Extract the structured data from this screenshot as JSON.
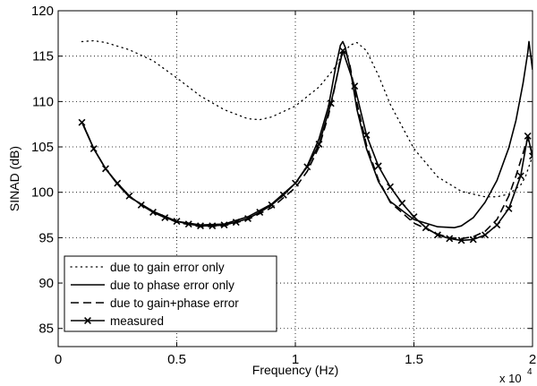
{
  "chart_data": {
    "type": "line",
    "xlabel": "Frequency (Hz)",
    "ylabel": "SINAD (dB)",
    "x_scale_label": {
      "base": "x 10",
      "exponent": "4"
    },
    "xlim": [
      0,
      20000
    ],
    "ylim": [
      83,
      120
    ],
    "xticks": [
      0,
      5000,
      10000,
      15000,
      20000
    ],
    "xtick_labels": [
      "0",
      "0.5",
      "1",
      "1.5",
      "2"
    ],
    "yticks": [
      85,
      90,
      95,
      100,
      105,
      110,
      115,
      120
    ],
    "ytick_labels": [
      "85",
      "90",
      "95",
      "100",
      "105",
      "110",
      "115",
      "120"
    ],
    "grid": true,
    "legend_position": "bottom-left",
    "series": [
      {
        "name": "due to gain error only",
        "style": "dotted",
        "color": "#000000",
        "x": [
          1000,
          1500,
          2000,
          3000,
          4000,
          5000,
          6000,
          7000,
          8000,
          8500,
          9000,
          10000,
          11000,
          11600,
          12000,
          12300,
          12600,
          13000,
          13500,
          14000,
          15000,
          16000,
          17000,
          18000,
          18500,
          19000,
          19500,
          19700,
          20000
        ],
        "y": [
          116.6,
          116.7,
          116.5,
          115.7,
          114.5,
          112.6,
          110.6,
          109.1,
          108.1,
          108.0,
          108.3,
          109.5,
          111.6,
          113.5,
          115.2,
          116.2,
          116.5,
          115.6,
          112.9,
          109.7,
          104.8,
          101.7,
          100.1,
          99.5,
          99.5,
          99.8,
          100.8,
          101.7,
          104.0
        ]
      },
      {
        "name": "due to phase error only",
        "style": "solid",
        "color": "#000000",
        "x": [
          1000,
          1500,
          2000,
          2500,
          3000,
          4000,
          5000,
          6000,
          7000,
          8000,
          9000,
          10000,
          10500,
          11000,
          11400,
          11700,
          11900,
          12000,
          12100,
          12300,
          12600,
          13000,
          13500,
          14000,
          15000,
          16000,
          16700,
          17000,
          17500,
          18000,
          18500,
          19000,
          19300,
          19600,
          19800,
          19850,
          20000
        ],
        "y": [
          107.8,
          104.8,
          102.6,
          100.9,
          99.5,
          97.9,
          96.8,
          96.4,
          96.5,
          97.3,
          98.7,
          101.0,
          102.9,
          105.9,
          109.5,
          113.8,
          116.2,
          116.6,
          116.0,
          113.8,
          109.1,
          104.8,
          101.2,
          99.0,
          97.0,
          96.2,
          96.1,
          96.3,
          97.2,
          98.9,
          101.3,
          104.9,
          107.9,
          112.0,
          115.4,
          116.6,
          113.5
        ]
      },
      {
        "name": "due to gain+phase error",
        "style": "dashed",
        "color": "#000000",
        "x": [
          1000,
          1500,
          2000,
          2500,
          3000,
          4000,
          5000,
          6000,
          7000,
          8000,
          9000,
          10000,
          10500,
          11000,
          11400,
          11700,
          11900,
          12000,
          12100,
          12300,
          12600,
          13000,
          13500,
          14000,
          15000,
          16000,
          16500,
          17000,
          17500,
          18000,
          18500,
          19000,
          19300,
          19600,
          19800,
          20000
        ],
        "y": [
          107.8,
          104.8,
          102.6,
          100.9,
          99.5,
          97.8,
          96.7,
          96.2,
          96.3,
          97.0,
          98.3,
          100.5,
          102.3,
          105.0,
          108.5,
          112.0,
          114.8,
          115.6,
          115.7,
          114.0,
          109.8,
          105.2,
          101.4,
          98.9,
          96.6,
          95.4,
          95.0,
          94.9,
          95.1,
          95.7,
          97.0,
          99.6,
          101.8,
          104.3,
          106.0,
          104.0
        ]
      },
      {
        "name": "measured",
        "style": "solid-x-markers",
        "color": "#000000",
        "x": [
          1000,
          1500,
          2000,
          2500,
          3000,
          3500,
          4000,
          4500,
          5000,
          5500,
          6000,
          6500,
          7000,
          7500,
          8000,
          8500,
          9000,
          9500,
          10000,
          10500,
          11000,
          11500,
          12000,
          12500,
          13000,
          13500,
          14000,
          14500,
          15000,
          15500,
          16000,
          16500,
          17000,
          17500,
          18000,
          18500,
          19000,
          19500,
          19800,
          20000
        ],
        "y": [
          107.7,
          104.8,
          102.6,
          101.0,
          99.6,
          98.6,
          97.8,
          97.2,
          96.8,
          96.5,
          96.3,
          96.3,
          96.4,
          96.7,
          97.1,
          97.8,
          98.6,
          99.7,
          101.0,
          102.8,
          105.3,
          109.8,
          115.6,
          111.7,
          106.3,
          102.9,
          100.6,
          98.8,
          97.3,
          96.1,
          95.3,
          94.9,
          94.7,
          94.8,
          95.3,
          96.4,
          98.2,
          101.8,
          106.2,
          104.0
        ]
      }
    ]
  }
}
